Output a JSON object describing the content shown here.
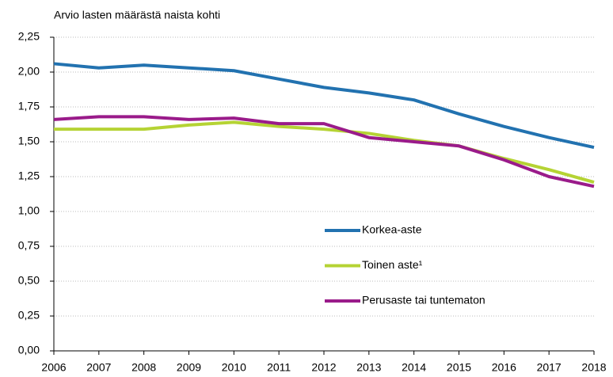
{
  "chart_data": {
    "type": "line",
    "y_label": "Arvio  lasten määrästä naista kohti",
    "x": [
      2006,
      2007,
      2008,
      2009,
      2010,
      2011,
      2012,
      2013,
      2014,
      2015,
      2016,
      2017,
      2018
    ],
    "xlim": [
      2006,
      2018
    ],
    "ylim": [
      0,
      2.25
    ],
    "yticks": [
      {
        "value": 0,
        "label": "0,00"
      },
      {
        "value": 0.25,
        "label": "0,25"
      },
      {
        "value": 0.5,
        "label": "0,50"
      },
      {
        "value": 0.75,
        "label": "0,75"
      },
      {
        "value": 1,
        "label": "1,00"
      },
      {
        "value": 1.25,
        "label": "1,25"
      },
      {
        "value": 1.5,
        "label": "1,50"
      },
      {
        "value": 1.75,
        "label": "1,75"
      },
      {
        "value": 2,
        "label": "2,00"
      },
      {
        "value": 2.25,
        "label": "2,25"
      }
    ],
    "grid": true,
    "series": [
      {
        "name": "Korkea-aste",
        "color": "#2272b0",
        "values": [
          2.06,
          2.03,
          2.05,
          2.03,
          2.01,
          1.95,
          1.89,
          1.85,
          1.8,
          1.7,
          1.61,
          1.53,
          1.46
        ]
      },
      {
        "name": "Toinen aste¹",
        "color": "#b5d334",
        "values": [
          1.59,
          1.59,
          1.59,
          1.62,
          1.64,
          1.61,
          1.59,
          1.56,
          1.51,
          1.47,
          1.38,
          1.3,
          1.21
        ]
      },
      {
        "name": "Perusaste tai tuntematon",
        "color": "#9a1b8a",
        "values": [
          1.66,
          1.68,
          1.68,
          1.66,
          1.67,
          1.63,
          1.63,
          1.53,
          1.5,
          1.47,
          1.37,
          1.25,
          1.18
        ]
      }
    ]
  }
}
